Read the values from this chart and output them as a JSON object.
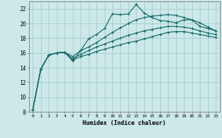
{
  "xlabel": "Humidex (Indice chaleur)",
  "background_color": "#cce8e8",
  "line_color": "#1a6b6b",
  "grid_color": "#aacfcf",
  "x": [
    0,
    1,
    2,
    3,
    4,
    5,
    6,
    7,
    8,
    9,
    10,
    11,
    12,
    13,
    14,
    15,
    16,
    17,
    18,
    19,
    20,
    21,
    22,
    23
  ],
  "line1": [
    8.3,
    13.8,
    15.7,
    16.0,
    16.1,
    14.9,
    16.3,
    17.9,
    18.5,
    19.3,
    21.3,
    21.2,
    21.3,
    22.6,
    21.4,
    20.8,
    20.4,
    20.3,
    20.1,
    20.5,
    20.5,
    19.6,
    19.3,
    19.0
  ],
  "line2": [
    8.3,
    13.8,
    15.7,
    16.0,
    16.1,
    15.5,
    16.3,
    16.8,
    17.4,
    18.1,
    18.8,
    19.4,
    20.0,
    20.5,
    20.8,
    21.0,
    21.1,
    21.2,
    21.1,
    20.8,
    20.5,
    20.1,
    19.5,
    19.0
  ],
  "line3": [
    8.3,
    13.8,
    15.7,
    16.0,
    16.1,
    15.2,
    15.8,
    16.3,
    16.8,
    17.2,
    17.6,
    18.0,
    18.4,
    18.7,
    19.0,
    19.2,
    19.4,
    19.6,
    19.6,
    19.5,
    19.3,
    19.0,
    18.7,
    18.5
  ],
  "line4": [
    8.3,
    13.8,
    15.7,
    16.0,
    16.1,
    15.0,
    15.5,
    15.8,
    16.2,
    16.5,
    16.8,
    17.1,
    17.4,
    17.6,
    17.9,
    18.2,
    18.5,
    18.8,
    18.9,
    18.9,
    18.7,
    18.5,
    18.3,
    18.1
  ],
  "ylim": [
    8,
    23
  ],
  "yticks": [
    8,
    10,
    12,
    14,
    16,
    18,
    20,
    22
  ],
  "xlim_min": -0.5,
  "xlim_max": 23.5
}
